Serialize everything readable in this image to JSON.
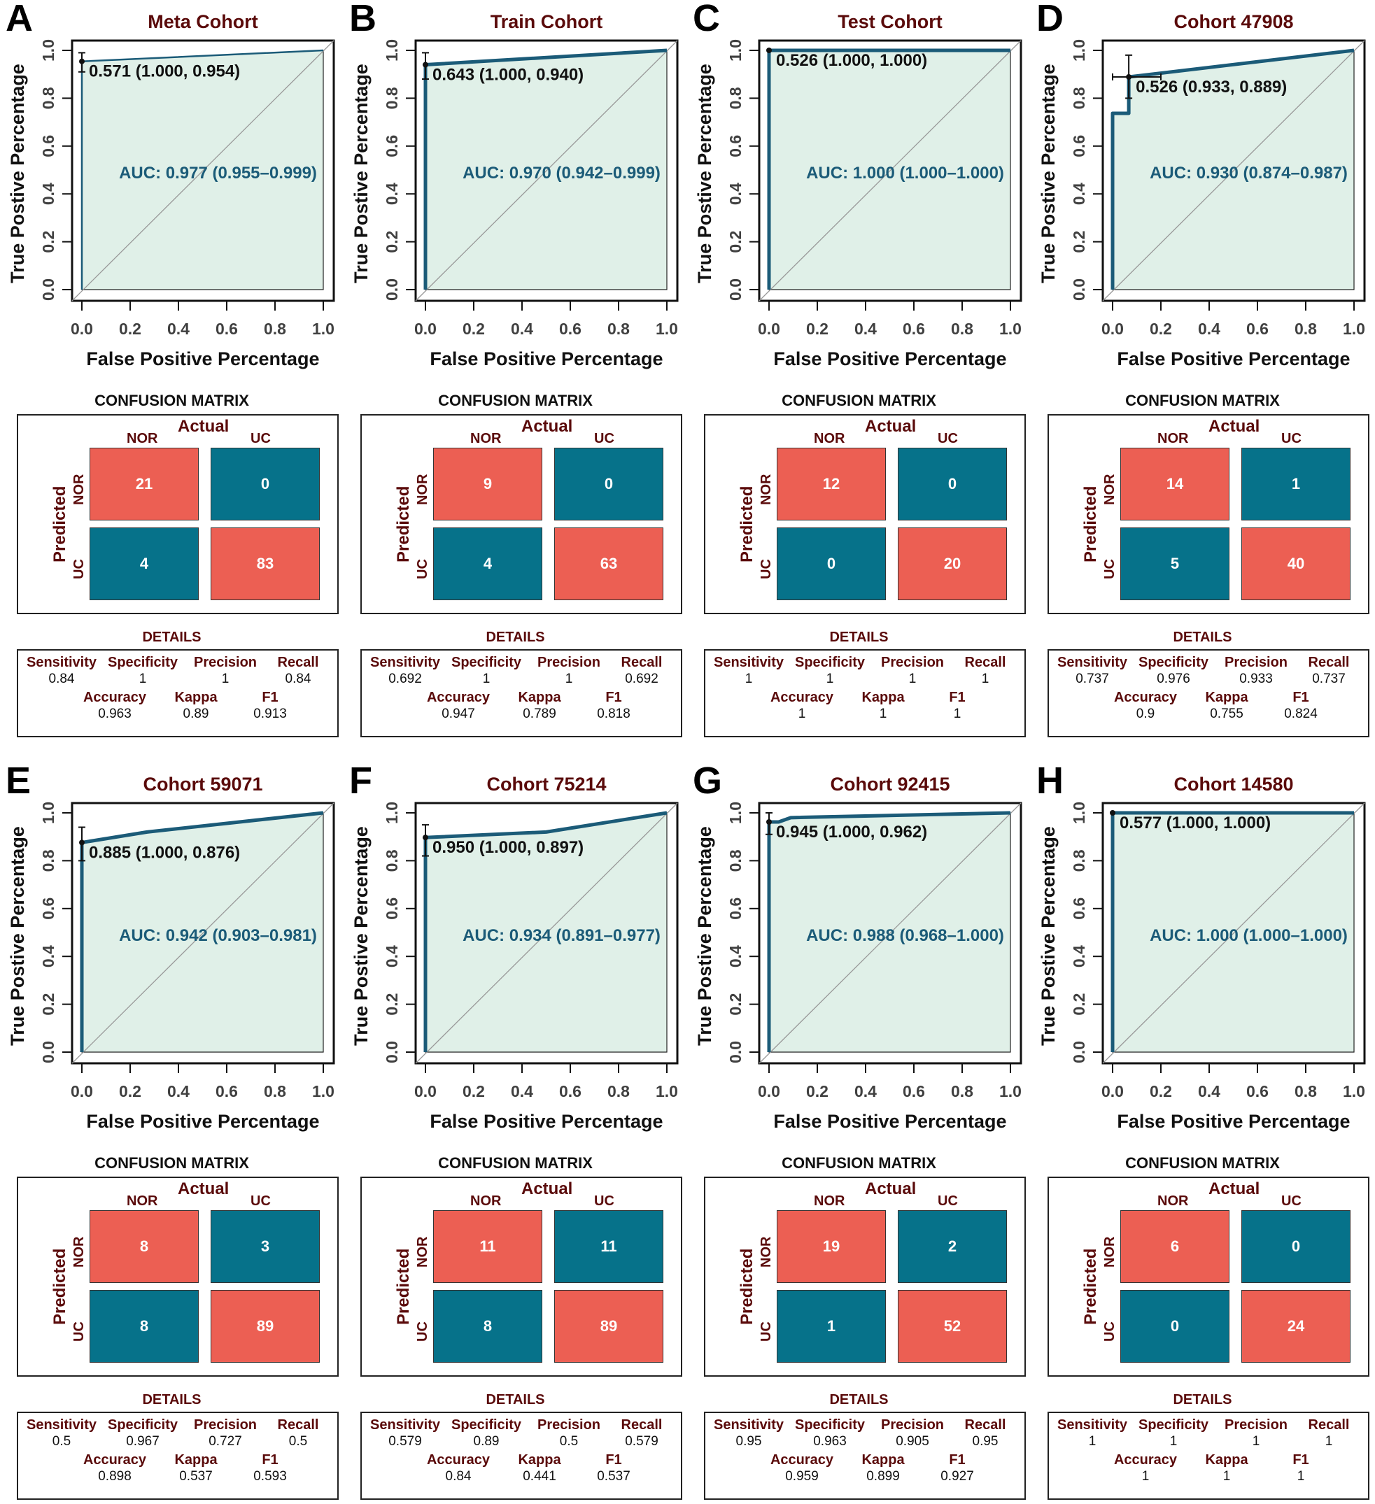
{
  "figure": {
    "roc_labels": {
      "xlabel": "False Positive Percentage",
      "ylabel": "True Postive Percentage",
      "ticks": [
        "0.0",
        "0.2",
        "0.4",
        "0.6",
        "0.8",
        "1.0"
      ]
    },
    "confusion_labels": {
      "title": "CONFUSION MATRIX",
      "actual": "Actual",
      "predicted": "Predicted",
      "classes": [
        "NOR",
        "UC"
      ]
    },
    "details_labels": {
      "title": "DETAILS",
      "row1": [
        "Sensitivity",
        "Specificity",
        "Precision",
        "Recall"
      ],
      "row2": [
        "Accuracy",
        "Kappa",
        "F1"
      ]
    },
    "colors": {
      "correct_cell": "#ec5f53",
      "incorrect_cell": "#06728a",
      "roc_line": "#1b5b78",
      "roc_fill": "#e0f0e8",
      "title_color": "#5a0a0a"
    }
  },
  "chart_data": [
    {
      "type": "line",
      "panel": "A",
      "title": "Meta Cohort",
      "xlabel": "False Positive Percentage",
      "ylabel": "True Postive Percentage",
      "xlim": [
        0,
        1
      ],
      "ylim": [
        0,
        1
      ],
      "x_reversed_specificity": true,
      "curve": [
        [
          0,
          0
        ],
        [
          0,
          0.954
        ],
        [
          1,
          1
        ]
      ],
      "threshold_point": {
        "fpr": 0,
        "tpr": 0.954,
        "tpr_ci": [
          0.91,
          0.99
        ],
        "fpr_ci": null
      },
      "threshold_label": "0.571 (1.000, 0.954)",
      "auc_label": "AUC: 0.977 (0.955–0.999)",
      "line_weight": "thin",
      "confusion": {
        "nor_nor": 21,
        "nor_uc": 0,
        "uc_nor": 4,
        "uc_uc": 83
      },
      "details": {
        "sensitivity": "0.84",
        "specificity": "1",
        "precision": "1",
        "recall": "0.84",
        "accuracy": "0.963",
        "kappa": "0.89",
        "f1": "0.913"
      }
    },
    {
      "type": "line",
      "panel": "B",
      "title": "Train Cohort",
      "xlabel": "False Positive Percentage",
      "ylabel": "True Postive Percentage",
      "xlim": [
        0,
        1
      ],
      "ylim": [
        0,
        1
      ],
      "curve": [
        [
          0,
          0
        ],
        [
          0,
          0.94
        ],
        [
          1,
          1
        ]
      ],
      "threshold_point": {
        "fpr": 0,
        "tpr": 0.94,
        "tpr_ci": [
          0.88,
          0.99
        ],
        "fpr_ci": null
      },
      "threshold_label": "0.643 (1.000, 0.940)",
      "auc_label": "AUC: 0.970 (0.942–0.999)",
      "line_weight": "thick",
      "confusion": {
        "nor_nor": 9,
        "nor_uc": 0,
        "uc_nor": 4,
        "uc_uc": 63
      },
      "details": {
        "sensitivity": "0.692",
        "specificity": "1",
        "precision": "1",
        "recall": "0.692",
        "accuracy": "0.947",
        "kappa": "0.789",
        "f1": "0.818"
      }
    },
    {
      "type": "line",
      "panel": "C",
      "title": "Test Cohort",
      "xlabel": "False Positive Percentage",
      "ylabel": "True Postive Percentage",
      "xlim": [
        0,
        1
      ],
      "ylim": [
        0,
        1
      ],
      "curve": [
        [
          0,
          0
        ],
        [
          0,
          1
        ],
        [
          1,
          1
        ]
      ],
      "threshold_point": {
        "fpr": 0,
        "tpr": 1,
        "tpr_ci": null,
        "fpr_ci": null
      },
      "threshold_label": "0.526 (1.000, 1.000)",
      "auc_label": "AUC: 1.000 (1.000–1.000)",
      "line_weight": "thick",
      "confusion": {
        "nor_nor": 12,
        "nor_uc": 0,
        "uc_nor": 0,
        "uc_uc": 20
      },
      "details": {
        "sensitivity": "1",
        "specificity": "1",
        "precision": "1",
        "recall": "1",
        "accuracy": "1",
        "kappa": "1",
        "f1": "1"
      }
    },
    {
      "type": "line",
      "panel": "D",
      "title": "Cohort 47908",
      "xlabel": "False Positive Percentage",
      "ylabel": "True Postive Percentage",
      "xlim": [
        0,
        1
      ],
      "ylim": [
        0,
        1
      ],
      "curve": [
        [
          0,
          0
        ],
        [
          0,
          0.737
        ],
        [
          0.067,
          0.737
        ],
        [
          0.067,
          0.889
        ],
        [
          1,
          1
        ]
      ],
      "threshold_point": {
        "fpr": 0.067,
        "tpr": 0.889,
        "tpr_ci": [
          0.8,
          0.98
        ],
        "fpr_ci": [
          0,
          0.2
        ]
      },
      "threshold_label": "0.526 (0.933, 0.889)",
      "auc_label": "AUC: 0.930 (0.874–0.987)",
      "line_weight": "thick",
      "confusion": {
        "nor_nor": 14,
        "nor_uc": 1,
        "uc_nor": 5,
        "uc_uc": 40
      },
      "details": {
        "sensitivity": "0.737",
        "specificity": "0.976",
        "precision": "0.933",
        "recall": "0.737",
        "accuracy": "0.9",
        "kappa": "0.755",
        "f1": "0.824"
      }
    },
    {
      "type": "line",
      "panel": "E",
      "title": "Cohort 59071",
      "xlabel": "False Positive Percentage",
      "ylabel": "True Postive Percentage",
      "xlim": [
        0,
        1
      ],
      "ylim": [
        0,
        1
      ],
      "curve": [
        [
          0,
          0
        ],
        [
          0,
          0.876
        ],
        [
          0.27,
          0.92
        ],
        [
          1,
          1
        ]
      ],
      "threshold_point": {
        "fpr": 0,
        "tpr": 0.876,
        "tpr_ci": [
          0.8,
          0.94
        ],
        "fpr_ci": null
      },
      "threshold_label": "0.885 (1.000, 0.876)",
      "auc_label": "AUC: 0.942 (0.903–0.981)",
      "line_weight": "thick",
      "confusion": {
        "nor_nor": 8,
        "nor_uc": 3,
        "uc_nor": 8,
        "uc_uc": 89
      },
      "details": {
        "sensitivity": "0.5",
        "specificity": "0.967",
        "precision": "0.727",
        "recall": "0.5",
        "accuracy": "0.898",
        "kappa": "0.537",
        "f1": "0.593"
      }
    },
    {
      "type": "line",
      "panel": "F",
      "title": "Cohort 75214",
      "xlabel": "False Positive Percentage",
      "ylabel": "True Postive Percentage",
      "xlim": [
        0,
        1
      ],
      "ylim": [
        0,
        1
      ],
      "curve": [
        [
          0,
          0
        ],
        [
          0,
          0.897
        ],
        [
          0.5,
          0.92
        ],
        [
          1,
          1
        ]
      ],
      "threshold_point": {
        "fpr": 0,
        "tpr": 0.897,
        "tpr_ci": [
          0.82,
          0.95
        ],
        "fpr_ci": null
      },
      "threshold_label": "0.950 (1.000, 0.897)",
      "auc_label": "AUC: 0.934 (0.891–0.977)",
      "line_weight": "thick",
      "confusion": {
        "nor_nor": 11,
        "nor_uc": 11,
        "uc_nor": 8,
        "uc_uc": 89
      },
      "details": {
        "sensitivity": "0.579",
        "specificity": "0.89",
        "precision": "0.5",
        "recall": "0.579",
        "accuracy": "0.84",
        "kappa": "0.441",
        "f1": "0.537"
      }
    },
    {
      "type": "line",
      "panel": "G",
      "title": "Cohort 92415",
      "xlabel": "False Positive Percentage",
      "ylabel": "True Postive Percentage",
      "xlim": [
        0,
        1
      ],
      "ylim": [
        0,
        1
      ],
      "curve": [
        [
          0,
          0
        ],
        [
          0,
          0.962
        ],
        [
          0.04,
          0.962
        ],
        [
          0.09,
          0.98
        ],
        [
          1,
          1
        ]
      ],
      "threshold_point": {
        "fpr": 0,
        "tpr": 0.962,
        "tpr_ci": [
          0.91,
          1.0
        ],
        "fpr_ci": null
      },
      "threshold_label": "0.945 (1.000, 0.962)",
      "auc_label": "AUC: 0.988 (0.968–1.000)",
      "line_weight": "thick",
      "confusion": {
        "nor_nor": 19,
        "nor_uc": 2,
        "uc_nor": 1,
        "uc_uc": 52
      },
      "details": {
        "sensitivity": "0.95",
        "specificity": "0.963",
        "precision": "0.905",
        "recall": "0.95",
        "accuracy": "0.959",
        "kappa": "0.899",
        "f1": "0.927"
      }
    },
    {
      "type": "line",
      "panel": "H",
      "title": "Cohort 14580",
      "xlabel": "False Positive Percentage",
      "ylabel": "True Postive Percentage",
      "xlim": [
        0,
        1
      ],
      "ylim": [
        0,
        1
      ],
      "curve": [
        [
          0,
          0
        ],
        [
          0,
          1
        ],
        [
          1,
          1
        ]
      ],
      "threshold_point": {
        "fpr": 0,
        "tpr": 1,
        "tpr_ci": null,
        "fpr_ci": null
      },
      "threshold_label": "0.577 (1.000, 1.000)",
      "auc_label": "AUC: 1.000 (1.000–1.000)",
      "line_weight": "thick",
      "confusion": {
        "nor_nor": 6,
        "nor_uc": 0,
        "uc_nor": 0,
        "uc_uc": 24
      },
      "details": {
        "sensitivity": "1",
        "specificity": "1",
        "precision": "1",
        "recall": "1",
        "accuracy": "1",
        "kappa": "1",
        "f1": "1"
      }
    }
  ]
}
